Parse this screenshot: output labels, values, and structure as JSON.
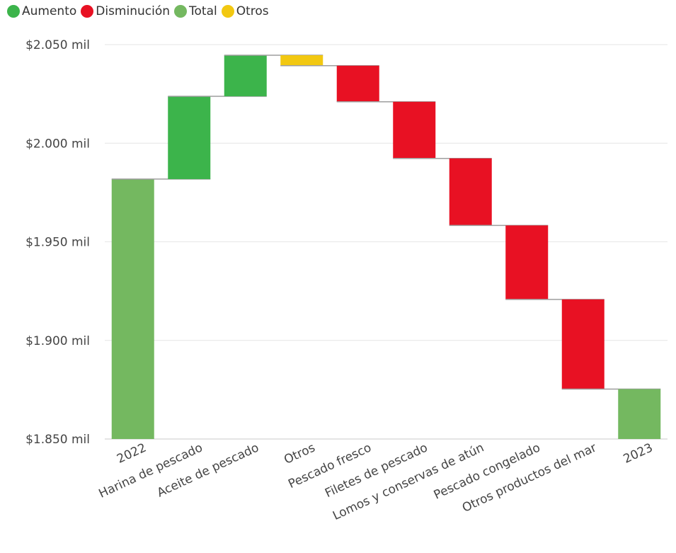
{
  "legend": [
    {
      "label": "Aumento",
      "color": "#3cb44b"
    },
    {
      "label": "Disminución",
      "color": "#e81123"
    },
    {
      "label": "Total",
      "color": "#74b860"
    },
    {
      "label": "Otros",
      "color": "#f2c811"
    }
  ],
  "chart_data": {
    "type": "waterfall",
    "ylim": [
      1850,
      2050
    ],
    "y_ticks": [
      1850,
      1900,
      1950,
      2000,
      2050
    ],
    "y_tick_labels": [
      "$1.850 mil",
      "$1.900 mil",
      "$1.950 mil",
      "$2.000 mil",
      "$2.050 mil"
    ],
    "categories": [
      "2022",
      "Harina de pescado",
      "Aceite de pescado",
      "Otros",
      "Pescado fresco",
      "Filetes de pescado",
      "Lomos y conservas de atún",
      "Pescado congelado",
      "Otros productos del mar",
      "2023"
    ],
    "bars": [
      {
        "category": "2022",
        "kind": "total",
        "start": 1850,
        "end": 1981.8
      },
      {
        "category": "Harina de pescado",
        "kind": "increase",
        "start": 1981.8,
        "end": 2023.8
      },
      {
        "category": "Aceite de pescado",
        "kind": "increase",
        "start": 2023.8,
        "end": 2044.6
      },
      {
        "category": "Otros",
        "kind": "other",
        "start": 2044.6,
        "end": 2039.3
      },
      {
        "category": "Pescado fresco",
        "kind": "decrease",
        "start": 2039.3,
        "end": 2021.0
      },
      {
        "category": "Filetes de pescado",
        "kind": "decrease",
        "start": 2021.0,
        "end": 1992.3
      },
      {
        "category": "Lomos y conservas de atún",
        "kind": "decrease",
        "start": 1992.3,
        "end": 1958.3
      },
      {
        "category": "Pescado congelado",
        "kind": "decrease",
        "start": 1958.3,
        "end": 1920.8
      },
      {
        "category": "Otros productos del mar",
        "kind": "decrease",
        "start": 1920.8,
        "end": 1875.3
      },
      {
        "category": "2023",
        "kind": "total",
        "start": 1850,
        "end": 1875.3
      }
    ],
    "colors": {
      "increase": "#3cb44b",
      "decrease": "#e81123",
      "total": "#74b860",
      "other": "#f2c811"
    },
    "grid": true,
    "legend_position": "top-left"
  }
}
